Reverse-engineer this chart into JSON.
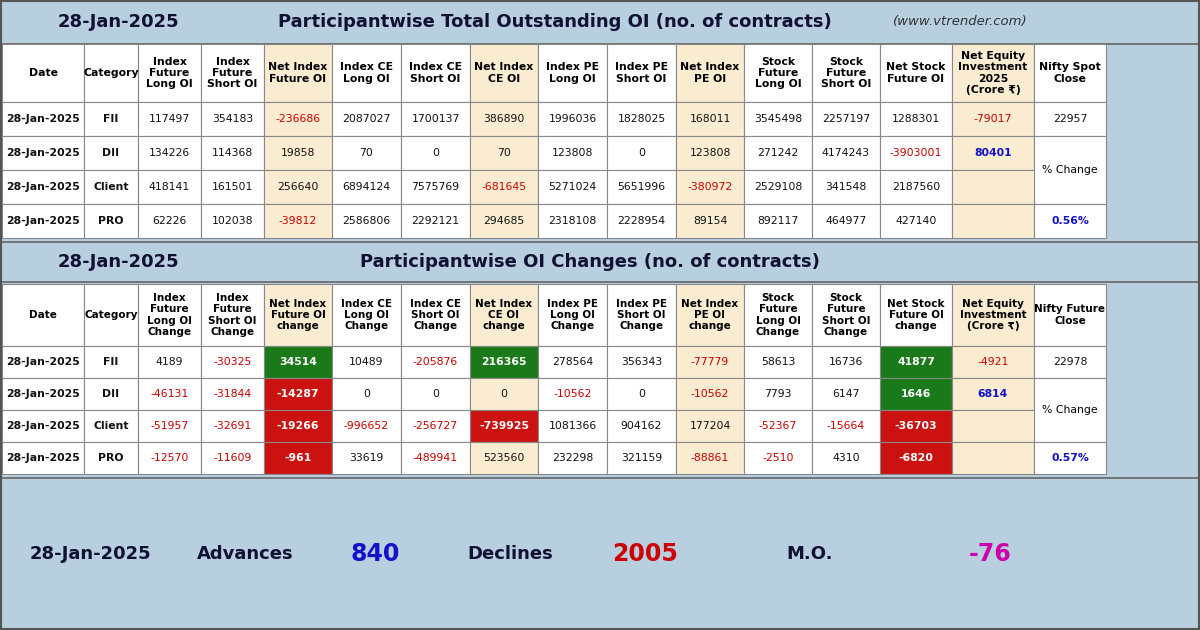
{
  "bg_color": "#b8cfe0",
  "highlight_bg": "#faecd0",
  "green_bg": "#1a7a1a",
  "red_bg": "#cc1111",
  "section1_title_left": "28-Jan-2025",
  "section1_title_center": "Participantwise Total Outstanding OI (no. of contracts)",
  "section1_title_right": "(www.vtrender.com)",
  "section2_title_left": "28-Jan-2025",
  "section2_title_center": "Participantwise OI Changes (no. of contracts)",
  "footer_date": "28-Jan-2025",
  "footer_advances_label": "Advances",
  "footer_advances_val": "840",
  "footer_declines_label": "Declines",
  "footer_declines_val": "2005",
  "footer_mo_label": "M.O.",
  "footer_mo_val": "-76",
  "table1_headers": [
    "Date",
    "Category",
    "Index\nFuture\nLong OI",
    "Index\nFuture\nShort OI",
    "Net Index\nFuture OI",
    "Index CE\nLong OI",
    "Index CE\nShort OI",
    "Net Index\nCE OI",
    "Index PE\nLong OI",
    "Index PE\nShort OI",
    "Net Index\nPE OI",
    "Stock\nFuture\nLong OI",
    "Stock\nFuture\nShort OI",
    "Net Stock\nFuture OI",
    "Net Equity\nInvestment\n2025\n(Crore ₹)",
    "Nifty Spot\nClose"
  ],
  "table1_col_widths": [
    82,
    54,
    63,
    63,
    68,
    69,
    69,
    68,
    69,
    69,
    68,
    68,
    68,
    72,
    82,
    72
  ],
  "table1_rows": [
    [
      "28-Jan-2025",
      "FII",
      "117497",
      "354183",
      "-236686",
      "2087027",
      "1700137",
      "386890",
      "1996036",
      "1828025",
      "168011",
      "3545498",
      "2257197",
      "1288301",
      "-79017",
      "22957"
    ],
    [
      "28-Jan-2025",
      "DII",
      "134226",
      "114368",
      "19858",
      "70",
      "0",
      "70",
      "123808",
      "0",
      "123808",
      "271242",
      "4174243",
      "-3903001",
      "80401",
      ""
    ],
    [
      "28-Jan-2025",
      "Client",
      "418141",
      "161501",
      "256640",
      "6894124",
      "7575769",
      "-681645",
      "5271024",
      "5651996",
      "-380972",
      "2529108",
      "341548",
      "2187560",
      "",
      ""
    ],
    [
      "28-Jan-2025",
      "PRO",
      "62226",
      "102038",
      "-39812",
      "2586806",
      "2292121",
      "294685",
      "2318108",
      "2228954",
      "89154",
      "892117",
      "464977",
      "427140",
      "",
      "0.56%"
    ]
  ],
  "table1_neg_red": [
    "-236686",
    "-681645",
    "-39812",
    "-3903001",
    "-380972",
    "-79017"
  ],
  "table1_pos_blue": [
    "80401"
  ],
  "table1_pct_blue": [
    "0.56%"
  ],
  "table1_highlight_cols": [
    4,
    7,
    10,
    14
  ],
  "table2_headers": [
    "Date",
    "Category",
    "Index\nFuture\nLong OI\nChange",
    "Index\nFuture\nShort OI\nChange",
    "Net Index\nFuture OI\nchange",
    "Index CE\nLong OI\nChange",
    "Index CE\nShort OI\nChange",
    "Net Index\nCE OI\nchange",
    "Index PE\nLong OI\nChange",
    "Index PE\nShort OI\nChange",
    "Net Index\nPE OI\nchange",
    "Stock\nFuture\nLong OI\nChange",
    "Stock\nFuture\nShort OI\nChange",
    "Net Stock\nFuture OI\nchange",
    "Net Equity\nInvestment\n(Crore ₹)",
    "Nifty Future\nClose"
  ],
  "table2_col_widths": [
    82,
    54,
    63,
    63,
    68,
    69,
    69,
    68,
    69,
    69,
    68,
    68,
    68,
    72,
    82,
    72
  ],
  "table2_rows": [
    [
      "28-Jan-2025",
      "FII",
      "4189",
      "-30325",
      "34514",
      "10489",
      "-205876",
      "216365",
      "278564",
      "356343",
      "-77779",
      "58613",
      "16736",
      "41877",
      "-4921",
      "22978"
    ],
    [
      "28-Jan-2025",
      "DII",
      "-46131",
      "-31844",
      "-14287",
      "0",
      "0",
      "0",
      "-10562",
      "0",
      "-10562",
      "7793",
      "6147",
      "1646",
      "6814",
      ""
    ],
    [
      "28-Jan-2025",
      "Client",
      "-51957",
      "-32691",
      "-19266",
      "-996652",
      "-256727",
      "-739925",
      "1081366",
      "904162",
      "177204",
      "-52367",
      "-15664",
      "-36703",
      "",
      ""
    ],
    [
      "28-Jan-2025",
      "PRO",
      "-12570",
      "-11609",
      "-961",
      "33619",
      "-489941",
      "523560",
      "232298",
      "321159",
      "-88861",
      "-2510",
      "4310",
      "-6820",
      "",
      "0.57%"
    ]
  ],
  "table2_green_bg": [
    "34514",
    "216365",
    "41877",
    "1646"
  ],
  "table2_red_bg": [
    "-14287",
    "-19266",
    "-739925",
    "-961",
    "-36703",
    "-6820"
  ],
  "table2_neg_red": [
    "-30325",
    "-205876",
    "-77779",
    "-46131",
    "-31844",
    "-10562",
    "-51957",
    "-32691",
    "-996652",
    "-256727",
    "-52367",
    "-15664",
    "-2510",
    "-12570",
    "-11609",
    "-489941",
    "-88861",
    "-4921"
  ],
  "table2_pos_blue": [
    "6814"
  ],
  "table2_pct_blue": [
    "0.57%"
  ],
  "table2_highlight_cols": [
    4,
    7,
    10,
    14
  ]
}
